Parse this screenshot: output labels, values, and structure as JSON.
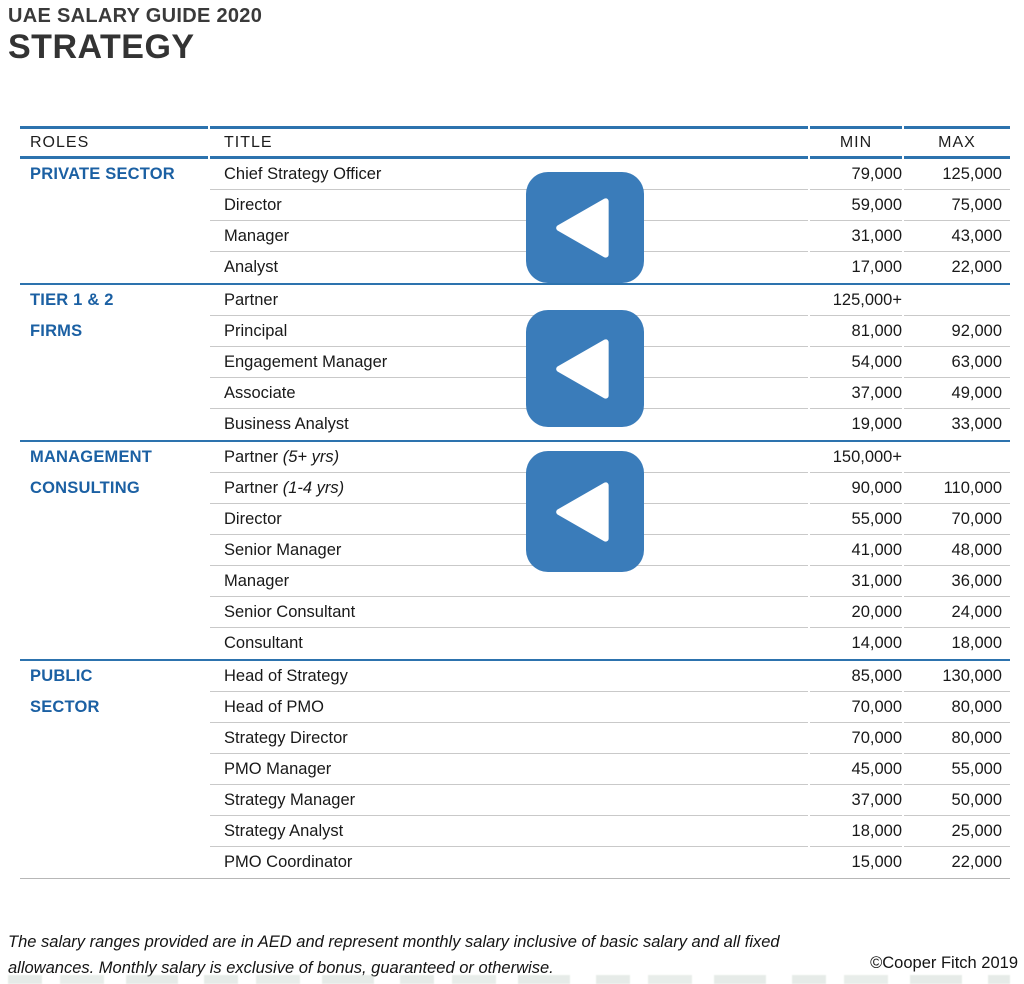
{
  "page": {
    "kicker": "UAE SALARY GUIDE 2020",
    "title": "STRATEGY"
  },
  "table": {
    "headers": {
      "roles": "ROLES",
      "title": "TITLE",
      "min": "MIN",
      "max": "MAX"
    },
    "sections": [
      {
        "role": "PRIVATE SECTOR",
        "role_lines": [
          "PRIVATE SECTOR"
        ],
        "rows": [
          {
            "title": "Chief Strategy Officer",
            "min": "79,000",
            "max": "125,000"
          },
          {
            "title": "Director",
            "min": "59,000",
            "max": "75,000"
          },
          {
            "title": "Manager",
            "min": "31,000",
            "max": "43,000"
          },
          {
            "title": "Analyst",
            "min": "17,000",
            "max": "22,000"
          }
        ]
      },
      {
        "role": "TIER 1 & 2 FIRMS",
        "role_lines": [
          "TIER 1 & 2",
          "FIRMS"
        ],
        "rows": [
          {
            "title": "Partner",
            "min": "125,000+",
            "max": ""
          },
          {
            "title": "Principal",
            "min": "81,000",
            "max": "92,000"
          },
          {
            "title": "Engagement Manager",
            "min": "54,000",
            "max": "63,000"
          },
          {
            "title": "Associate",
            "min": "37,000",
            "max": "49,000"
          },
          {
            "title": "Business Analyst",
            "min": "19,000",
            "max": "33,000"
          }
        ]
      },
      {
        "role": "MANAGEMENT CONSULTING",
        "role_lines": [
          "MANAGEMENT",
          "CONSULTING"
        ],
        "rows": [
          {
            "title": "Partner",
            "note": "(5+ yrs)",
            "min": "150,000+",
            "max": ""
          },
          {
            "title": "Partner",
            "note": "(1-4 yrs)",
            "min": "90,000",
            "max": "110,000"
          },
          {
            "title": "Director",
            "min": "55,000",
            "max": "70,000"
          },
          {
            "title": "Senior Manager",
            "min": "41,000",
            "max": "48,000"
          },
          {
            "title": "Manager",
            "min": "31,000",
            "max": "36,000"
          },
          {
            "title": "Senior Consultant",
            "min": "20,000",
            "max": "24,000"
          },
          {
            "title": "Consultant",
            "min": "14,000",
            "max": "18,000"
          }
        ]
      },
      {
        "role": "PUBLIC SECTOR",
        "role_lines": [
          "PUBLIC",
          "SECTOR"
        ],
        "rows": [
          {
            "title": "Head of Strategy",
            "min": "85,000",
            "max": "130,000"
          },
          {
            "title": "Head of PMO",
            "min": "70,000",
            "max": "80,000"
          },
          {
            "title": "Strategy Director",
            "min": "70,000",
            "max": "80,000"
          },
          {
            "title": "PMO Manager",
            "min": "45,000",
            "max": "55,000"
          },
          {
            "title": "Strategy Manager",
            "min": "37,000",
            "max": "50,000"
          },
          {
            "title": "Strategy Analyst",
            "min": "18,000",
            "max": "25,000"
          },
          {
            "title": "PMO Coordinator",
            "min": "15,000",
            "max": "22,000"
          }
        ]
      }
    ]
  },
  "overlay_buttons": [
    {
      "name": "nav-back-button-1",
      "icon": "triangle-left-icon"
    },
    {
      "name": "nav-back-button-2",
      "icon": "triangle-left-icon"
    },
    {
      "name": "nav-back-button-3",
      "icon": "triangle-left-icon"
    }
  ],
  "footer": {
    "disclaimer": "The salary ranges provided are in AED and represent monthly salary inclusive of basic salary and all fixed allowances. Monthly salary is exclusive of bonus, guaranteed or otherwise.",
    "copyright": "©Cooper Fitch 2019"
  },
  "colors": {
    "accent_blue": "#2d73ae",
    "section_label_blue": "#1b60a3",
    "button_blue": "#3a7cba",
    "row_line_gray": "#c9c9c9",
    "text_dark": "#1c1c1c"
  }
}
